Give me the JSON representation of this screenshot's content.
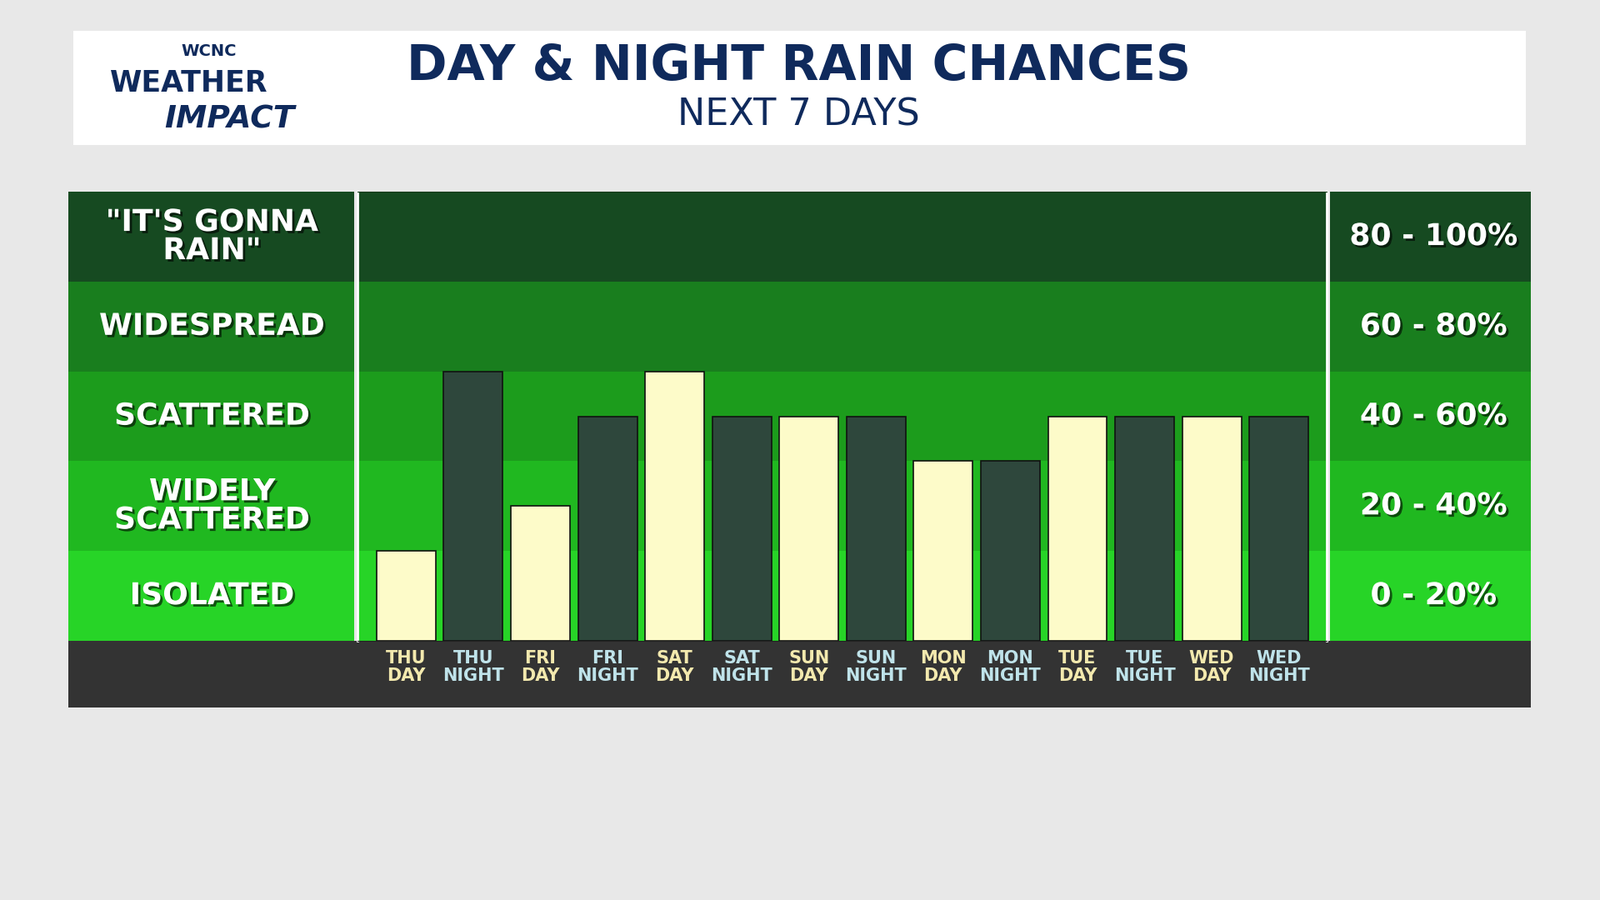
{
  "logo": {
    "lines": [
      "WCNC",
      "WEATHER",
      "IMPACT"
    ]
  },
  "chart_data": {
    "type": "bar",
    "title": "DAY & NIGHT RAIN CHANCES",
    "subtitle": "NEXT 7 DAYS",
    "categories": [
      "THU\nDAY",
      "THU\nNIGHT",
      "FRI\nDAY",
      "FRI\nNIGHT",
      "SAT\nDAY",
      "SAT\nNIGHT",
      "SUN\nDAY",
      "SUN\nNIGHT",
      "MON\nDAY",
      "MON\nNIGHT",
      "TUE\nDAY",
      "TUE\nNIGHT",
      "WED\nDAY",
      "WED\nNIGHT"
    ],
    "values": [
      20,
      60,
      30,
      50,
      60,
      50,
      50,
      50,
      40,
      40,
      50,
      50,
      50,
      50
    ],
    "colors": [
      "#fdfbc9",
      "#2e473c",
      "#fdfbc9",
      "#2e473c",
      "#fdfbc9",
      "#2e473c",
      "#fdfbc9",
      "#2e473c",
      "#fdfbc9",
      "#2e473c",
      "#fdfbc9",
      "#2e473c",
      "#fdfbc9",
      "#2e473c"
    ],
    "ylim": [
      0,
      100
    ],
    "tick_labels": "x",
    "bands": [
      {
        "label": "ISOLATED",
        "range_label": "0 - 20%",
        "range": [
          0,
          20
        ],
        "color": "#27d427"
      },
      {
        "label": "WIDELY\nSCATTERED",
        "range_label": "20 - 40%",
        "range": [
          20,
          40
        ],
        "color": "#20b820"
      },
      {
        "label": "SCATTERED",
        "range_label": "40 - 60%",
        "range": [
          40,
          60
        ],
        "color": "#1c9c1c"
      },
      {
        "label": "WIDESPREAD",
        "range_label": "60 - 80%",
        "range": [
          60,
          80
        ],
        "color": "#197e1e"
      },
      {
        "label": "\"IT'S GONNA\nRAIN\"",
        "range_label": "80 - 100%",
        "range": [
          80,
          100
        ],
        "color": "#164a21"
      }
    ]
  }
}
